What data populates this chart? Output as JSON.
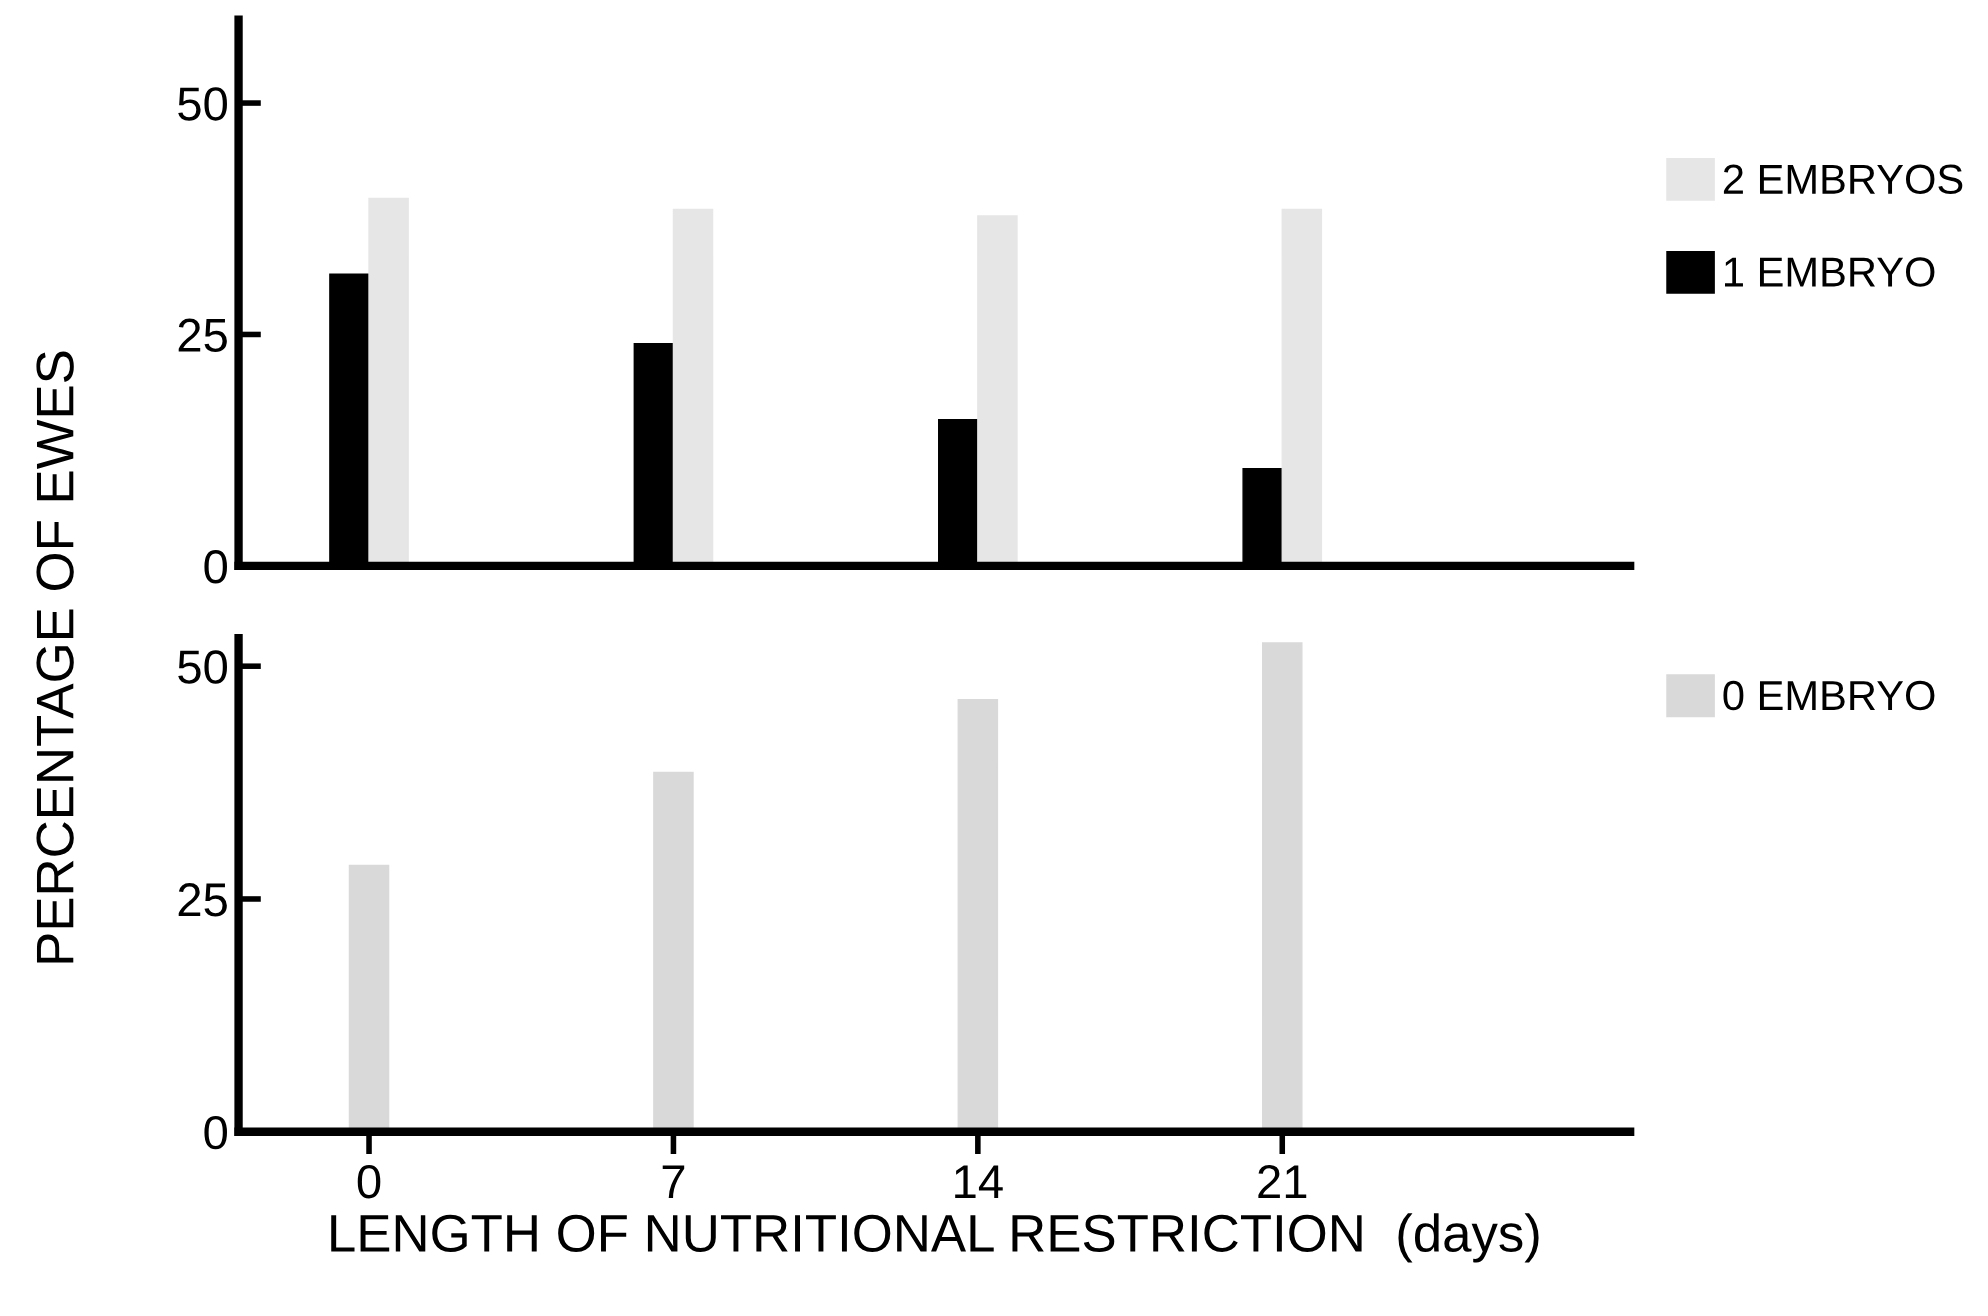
{
  "chart_data": [
    {
      "type": "bar",
      "x": [
        0,
        7,
        14,
        21
      ],
      "xlim": [
        -3,
        29
      ],
      "ylim": [
        0,
        59
      ],
      "yticks": [
        0,
        25,
        50
      ],
      "tick_labels": "y",
      "grid": false,
      "legend": "right",
      "ylabel": "PERCENTAGE OF EWES",
      "series": [
        {
          "name": "1 EMBRYO",
          "color": "#000000",
          "values": [
            31.5,
            24,
            15.8,
            10.5
          ]
        },
        {
          "name": "2 EMBRYOS",
          "color": "#e6e6e6",
          "values": [
            39.7,
            38.5,
            37.8,
            38.5
          ]
        }
      ]
    },
    {
      "type": "bar",
      "x": [
        0,
        7,
        14,
        21
      ],
      "xlim": [
        -3,
        29
      ],
      "xticks": [
        0,
        7,
        14,
        21
      ],
      "ylim": [
        0,
        53
      ],
      "yticks": [
        0,
        25,
        50
      ],
      "grid": false,
      "legend": "top right",
      "xlabel": "LENGTH OF NUTRITIONAL RESTRICTION  (days)",
      "series": [
        {
          "name": "0 EMBRYO",
          "color": "#d9d9d9",
          "values": [
            28.6,
            38.6,
            46.4,
            52.5
          ]
        }
      ]
    }
  ]
}
